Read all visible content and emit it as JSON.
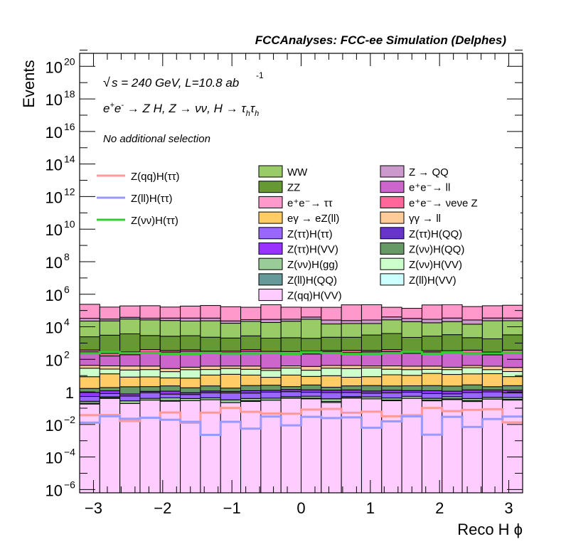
{
  "chart_data": {
    "type": "bar",
    "subtype": "stacked-histogram-log",
    "title": "FCCAnalyses: FCC-ee Simulation (Delphes)",
    "annotations": [
      "√s = 240 GeV, L=10.8 ab^-1",
      "e+e- → Z H, Z → νν, H → τhτh",
      "No additional selection"
    ],
    "annotation_parts": {
      "sqrt": "√",
      "s_eq": "s = 240 GeV, L=10.8 ab",
      "lumi_exp": "-1",
      "line2_a": "e",
      "line2_plus": "+",
      "line2_b": "e",
      "line2_minus": "-",
      "line2_c": " → Z H, Z  → νν, H  → τ",
      "line2_h1": "h",
      "line2_d": "τ",
      "line2_h2": "h",
      "selection": "No additional selection"
    },
    "xlabel": "Reco H ϕ",
    "ylabel": "Events",
    "xlim": [
      -3.2,
      3.2
    ],
    "ylim_log10": [
      -6.2,
      20.8
    ],
    "yscale": "log",
    "grid": false,
    "x_ticks": [
      "−3",
      "−2",
      "−1",
      "0",
      "1",
      "2",
      "3"
    ],
    "x_tick_values": [
      -3,
      -2,
      -1,
      0,
      1,
      2,
      3
    ],
    "y_ticks": [
      {
        "exp": -6,
        "base": "10",
        "sup": "−6"
      },
      {
        "exp": -4,
        "base": "10",
        "sup": "−4"
      },
      {
        "exp": -2,
        "base": "10",
        "sup": "−2"
      },
      {
        "exp": 0,
        "base": "1",
        "sup": ""
      },
      {
        "exp": 2,
        "base": "10",
        "sup": "2"
      },
      {
        "exp": 4,
        "base": "10",
        "sup": "4"
      },
      {
        "exp": 6,
        "base": "10",
        "sup": "6"
      },
      {
        "exp": 8,
        "base": "10",
        "sup": "8"
      },
      {
        "exp": 10,
        "base": "10",
        "sup": "10"
      },
      {
        "exp": 12,
        "base": "10",
        "sup": "12"
      },
      {
        "exp": 14,
        "base": "10",
        "sup": "14"
      },
      {
        "exp": 16,
        "base": "10",
        "sup": "16"
      },
      {
        "exp": 18,
        "base": "10",
        "sup": "18"
      },
      {
        "exp": 20,
        "base": "10",
        "sup": "20"
      }
    ],
    "bins": 22,
    "stack_bottom_up": [
      {
        "name": "Z(qq)H(VV)",
        "color": "#ffccff",
        "level": 0.3
      },
      {
        "name": "Z(ll)H(VV)",
        "color": "#ccffff",
        "level": 0.03
      },
      {
        "name": "Z(νν)H(gg)",
        "color": "#99cc99",
        "level": 0.1
      },
      {
        "name": "Z(ll)H(QQ)",
        "color": "#669999",
        "level": 1e-06
      },
      {
        "name": "Z(ττ)H(QQ)",
        "color": "#6633cc",
        "level": 0.0001
      },
      {
        "name": "Z(ττ)H(ττ)",
        "color": "#9966ff",
        "level": 0.4
      },
      {
        "name": "Z(ττ)H(VV)",
        "color": "#9933ff",
        "level": 0.3
      },
      {
        "name": "Z(νν)H(QQ)",
        "color": "#669966",
        "level": 1.0
      },
      {
        "name": "eγ → eZ(ll)",
        "color": "#ffcc66",
        "level": 8
      },
      {
        "name": "Z(νν)H(VV)",
        "color": "#ccffcc",
        "level": 15
      },
      {
        "name": "γγ → ll",
        "color": "#ffcc99",
        "level": 12
      },
      {
        "name": "e+e- → ll",
        "color": "#cc66cc",
        "level": 200
      },
      {
        "name": "e+e- → νeνe Z",
        "color": "#ff6699",
        "level": 90
      },
      {
        "name": "ZZ",
        "color": "#669933",
        "level": 2500
      },
      {
        "name": "WW",
        "color": "#99cc66",
        "level": 20000
      },
      {
        "name": "Z → QQ",
        "color": "#cc99cc",
        "level": 10000
      },
      {
        "name": "e+e- → ττ",
        "color": "#ff99cc",
        "level": 150000
      }
    ],
    "signal_lines": [
      {
        "name": "Z(qq)H(ττ)",
        "color": "#ff9999",
        "approx_level": 0.05
      },
      {
        "name": "Z(ll)H(ττ)",
        "color": "#9999ff",
        "approx_level": 0.015
      },
      {
        "name": "Z(νν)H(ττ)",
        "color": "#33cc33",
        "approx_level": 250
      }
    ],
    "legend": {
      "placement": "top",
      "lines": [
        {
          "label": "Z(qq)H(ττ)",
          "color": "#ff9999"
        },
        {
          "label": "Z(ll)H(ττ)",
          "color": "#9999ff"
        },
        {
          "label": "Z(νν)H(ττ)",
          "color": "#33cc33"
        }
      ],
      "col1": [
        {
          "label": "WW",
          "color": "#99cc66"
        },
        {
          "label": "ZZ",
          "color": "#669933"
        },
        {
          "label": "e⁺e⁻→ ττ",
          "color": "#ff99cc"
        },
        {
          "label": "eγ → eZ(ll)",
          "color": "#ffcc66"
        },
        {
          "label": "Z(ττ)H(ττ)",
          "color": "#9966ff"
        },
        {
          "label": "Z(ττ)H(VV)",
          "color": "#9933ff"
        },
        {
          "label": "Z(νν)H(gg)",
          "color": "#99cc99"
        },
        {
          "label": "Z(ll)H(QQ)",
          "color": "#669999"
        },
        {
          "label": "Z(qq)H(VV)",
          "color": "#ffccff"
        }
      ],
      "col2": [
        {
          "label": "Z → QQ",
          "color": "#cc99cc"
        },
        {
          "label": "e⁺e⁻→ ll",
          "color": "#cc66cc"
        },
        {
          "label": "e⁺e⁻→ νeνe Z",
          "color": "#ff6699"
        },
        {
          "label": "γγ → ll",
          "color": "#ffcc99"
        },
        {
          "label": "Z(ττ)H(QQ)",
          "color": "#6633cc"
        },
        {
          "label": "Z(νν)H(QQ)",
          "color": "#669966"
        },
        {
          "label": "Z(νν)H(VV)",
          "color": "#ccffcc"
        },
        {
          "label": "Z(ll)H(VV)",
          "color": "#ccffff"
        }
      ]
    }
  }
}
